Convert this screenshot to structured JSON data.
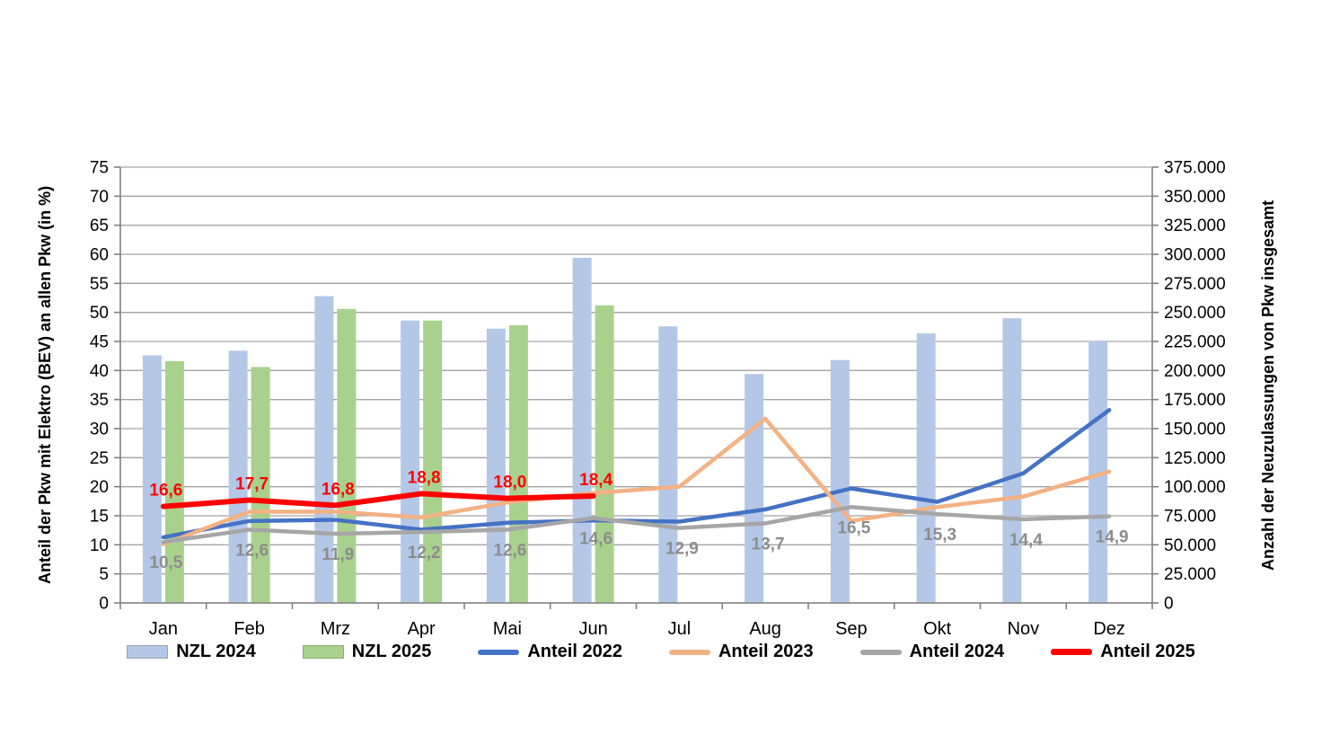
{
  "chart_data": {
    "type": "bar",
    "subtype": "combo-bar-line-dual-axis",
    "categories": [
      "Jan",
      "Feb",
      "Mrz",
      "Apr",
      "Mai",
      "Jun",
      "Jul",
      "Aug",
      "Sep",
      "Okt",
      "Nov",
      "Dez"
    ],
    "left_axis": {
      "title": "Anteil der Pkw mit Elektro (BEV) an allen Pkw (in %)",
      "min": 0,
      "max": 75,
      "step": 5
    },
    "right_axis": {
      "title": "Anzahl der Neuzulassungen von Pkw insgesamt",
      "min": 0,
      "max": 375000,
      "step": 25000,
      "tick_labels": [
        "0",
        "25.000",
        "50.000",
        "75.000",
        "100.000",
        "125.000",
        "150.000",
        "175.000",
        "200.000",
        "225.000",
        "250.000",
        "275.000",
        "300.000",
        "325.000",
        "350.000",
        "375.000"
      ]
    },
    "bar_series": [
      {
        "name": "NZL 2024",
        "color": "#b4c7e7",
        "axis": "right",
        "values": [
          213000,
          217000,
          264000,
          243000,
          236000,
          297000,
          238000,
          197000,
          209000,
          232000,
          245000,
          225000
        ]
      },
      {
        "name": "NZL 2025",
        "color": "#a9d18e",
        "axis": "right",
        "values": [
          208000,
          203000,
          253000,
          243000,
          239000,
          256000,
          null,
          null,
          null,
          null,
          null,
          null
        ]
      }
    ],
    "line_series": [
      {
        "name": "Anteil 2022",
        "color": "#4472c4",
        "stroke_width": 4.5,
        "axis": "left",
        "values": [
          11.3,
          14.1,
          14.3,
          12.6,
          13.8,
          14.2,
          14.0,
          16.1,
          19.7,
          17.4,
          22.3,
          33.2
        ]
      },
      {
        "name": "Anteil 2023",
        "color": "#f4b183",
        "stroke_width": 4.5,
        "axis": "left",
        "values": [
          10.1,
          15.7,
          15.7,
          14.7,
          17.3,
          18.9,
          20.0,
          31.7,
          14.1,
          16.5,
          18.3,
          22.6
        ]
      },
      {
        "name": "Anteil 2024",
        "color": "#a6a6a6",
        "stroke_width": 4.5,
        "axis": "left",
        "values": [
          10.5,
          12.6,
          11.9,
          12.2,
          12.6,
          14.6,
          12.9,
          13.7,
          16.5,
          15.3,
          14.4,
          14.9
        ],
        "point_labels": [
          "10,5",
          "12,6",
          "11,9",
          "12,2",
          "12,6",
          "14,6",
          "12,9",
          "13,7",
          "16,5",
          "15,3",
          "14,4",
          "14,9"
        ],
        "label_color": "#8c8c8c",
        "label_position": "below"
      },
      {
        "name": "Anteil 2025",
        "color": "#ff0000",
        "stroke_width": 6,
        "axis": "left",
        "values": [
          16.6,
          17.7,
          16.8,
          18.8,
          18.0,
          18.4,
          null,
          null,
          null,
          null,
          null,
          null
        ],
        "point_labels": [
          "16,6",
          "17,7",
          "16,8",
          "18,8",
          "18,0",
          "18,4"
        ],
        "label_color": "#ff0000",
        "label_position": "above"
      }
    ],
    "grid": true,
    "legend_position": "bottom",
    "colors": {
      "background": "#ffffff",
      "gridline": "#a3a3a3",
      "axis_line": "#808080",
      "tick_label": "#000000"
    }
  }
}
